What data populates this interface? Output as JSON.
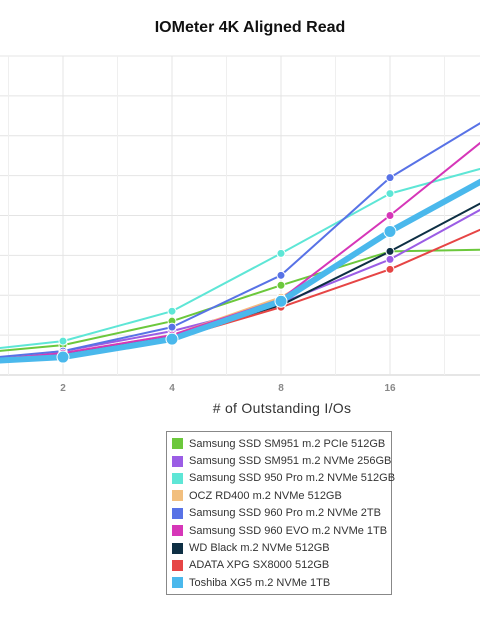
{
  "chart_data": {
    "type": "line",
    "title": "IOMeter 4K Aligned Read",
    "xlabel": "# of Outstanding I/Os",
    "ylabel": "",
    "x": [
      1,
      2,
      4,
      8,
      16,
      32
    ],
    "x_tick_labels": [
      "2",
      "4",
      "8",
      "16"
    ],
    "x_scale": "log2",
    "y_grid_levels": 8,
    "grid": true,
    "legend_position": "bottom",
    "series": [
      {
        "name": "Samsung SSD SM951 m.2 PCIe 512GB",
        "color": "#6cc83c",
        "values": [
          0.5,
          0.75,
          1.35,
          2.25,
          3.1,
          3.15
        ]
      },
      {
        "name": "Samsung SSD SM951 m.2 NVMe 256GB",
        "color": "#9b5de5",
        "values": [
          0.3,
          0.6,
          1.1,
          1.8,
          2.9,
          4.4
        ]
      },
      {
        "name": "Samsung SSD 950 Pro m.2 NVMe 512GB",
        "color": "#5ee6d6",
        "values": [
          0.55,
          0.85,
          1.6,
          3.05,
          4.55,
          5.3
        ]
      },
      {
        "name": "OCZ RD400 m.2 NVMe 512GB",
        "color": "#f2bf7e",
        "values": [
          0.35,
          0.55,
          1.0,
          1.95,
          3.55,
          5.05
        ]
      },
      {
        "name": "Samsung SSD 960 Pro m.2 NVMe 2TB",
        "color": "#5872e6",
        "values": [
          0.35,
          0.6,
          1.2,
          2.5,
          4.95,
          6.6
        ]
      },
      {
        "name": "Samsung SSD 960 EVO m.2 NVMe 1TB",
        "color": "#d636b8",
        "values": [
          0.3,
          0.55,
          1.0,
          1.9,
          4.0,
          6.2
        ]
      },
      {
        "name": "WD Black m.2 NVMe 512GB",
        "color": "#0e2f44",
        "values": [
          0.3,
          0.5,
          0.95,
          1.75,
          3.1,
          4.55
        ]
      },
      {
        "name": "ADATA XPG SX8000 512GB",
        "color": "#e64545",
        "values": [
          0.25,
          0.45,
          0.9,
          1.7,
          2.65,
          3.85
        ]
      },
      {
        "name": "Toshiba XG5 m.2 NVMe 1TB",
        "color": "#4ab8ec",
        "values": [
          0.3,
          0.45,
          0.9,
          1.85,
          3.6,
          5.1
        ]
      }
    ]
  }
}
